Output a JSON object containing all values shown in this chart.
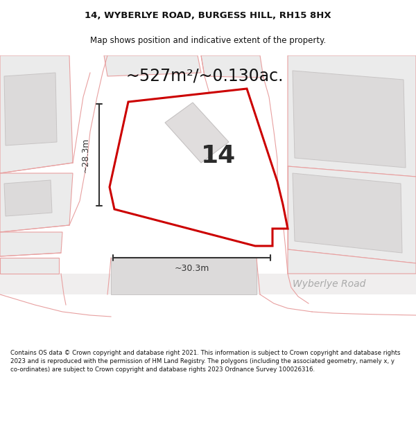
{
  "title_line1": "14, WYBERLYE ROAD, BURGESS HILL, RH15 8HX",
  "title_line2": "Map shows position and indicative extent of the property.",
  "area_label": "~527m²/~0.130ac.",
  "number_label": "14",
  "width_label": "~30.3m",
  "height_label": "~28.3m",
  "road_label": "Wyberlye Road",
  "footer": "Contains OS data © Crown copyright and database right 2021. This information is subject to Crown copyright and database rights 2023 and is reproduced with the permission of HM Land Registry. The polygons (including the associated geometry, namely x, y co-ordinates) are subject to Crown copyright and database rights 2023 Ordnance Survey 100026316.",
  "bg_color": "#ffffff",
  "map_bg": "#f5f3f3",
  "plot_fill": "#ffffff",
  "plot_edge": "#cc0000",
  "other_fill": "#ebebeb",
  "other_edge": "#e8a0a0",
  "building_fill": "#dcdada",
  "building_edge": "#c8c5c5",
  "dim_color": "#333333",
  "road_color": "#aaaaaa",
  "title_fontsize": 9.5,
  "subtitle_fontsize": 8.5,
  "area_fontsize": 17,
  "number_fontsize": 26,
  "dim_fontsize": 9,
  "road_fontsize": 10,
  "footer_fontsize": 6.2
}
